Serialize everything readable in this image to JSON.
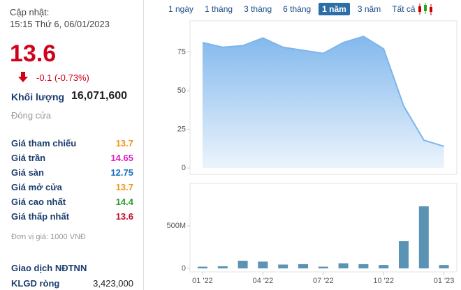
{
  "panel": {
    "updated_label": "Cập nhật:",
    "updated_time": "15:15 Thứ 6, 06/01/2023",
    "price": "13.6",
    "change": "-0.1 (-0.73%)",
    "volume_label": "Khối lượng",
    "volume": "16,071,600",
    "status": "Đóng cửa",
    "rows": [
      [
        "Giá tham chiếu",
        "13.7"
      ],
      [
        "Giá trần",
        "14.65"
      ],
      [
        "Giá sàn",
        "12.75"
      ],
      [
        "Giá mở cửa",
        "13.7"
      ],
      [
        "Giá cao nhất",
        "14.4"
      ],
      [
        "Giá thấp nhất",
        "13.6"
      ]
    ],
    "unit": "Đơn vị giá: 1000 VNĐ",
    "foreign_title": "Giao dịch NĐTNN",
    "net_label": "KLGD ròng",
    "net_value": "3,423,000"
  },
  "ranges": {
    "buttons": [
      "1 ngày",
      "1 tháng",
      "3 tháng",
      "6 tháng",
      "1 năm",
      "3 năm",
      "Tất cả"
    ],
    "active": 4
  },
  "chart_data": [
    {
      "type": "area",
      "color": "#7cb5ec",
      "values": [
        81,
        78,
        79,
        84,
        78,
        76,
        74,
        81,
        85,
        77,
        40,
        18,
        14
      ],
      "ylim": [
        0,
        95
      ],
      "yticks": [
        0,
        25,
        50,
        75
      ]
    },
    {
      "type": "bar",
      "color": "#5b93b5",
      "categories": [
        "01 '22",
        null,
        null,
        "04 '22",
        null,
        null,
        "07 '22",
        null,
        null,
        "10 '22",
        null,
        null,
        "01 '23"
      ],
      "values": [
        20000000,
        25000000,
        90000000,
        80000000,
        45000000,
        50000000,
        20000000,
        60000000,
        50000000,
        40000000,
        320000000,
        730000000,
        40000000
      ],
      "ylim": [
        0,
        1000000000
      ],
      "yticks": [
        0,
        {
          "value": 500000000,
          "label": "500M"
        }
      ]
    }
  ]
}
